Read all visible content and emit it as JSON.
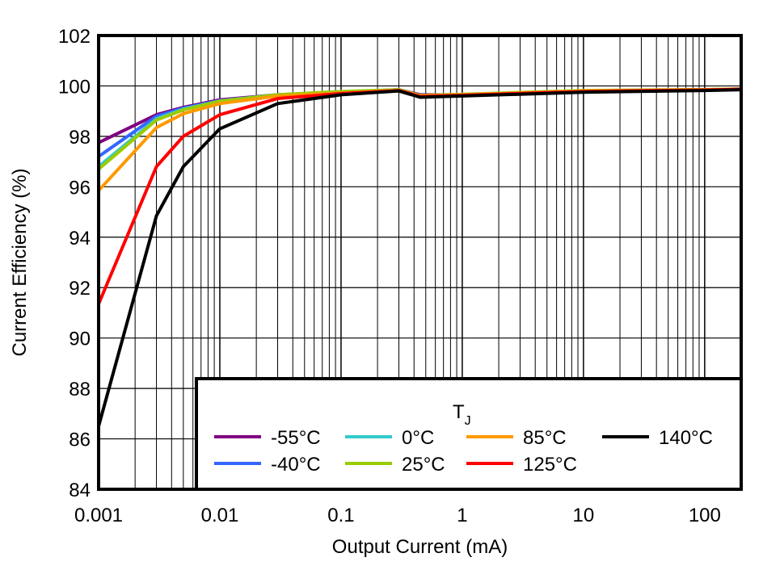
{
  "chart_data": {
    "type": "line",
    "xlabel": "Output Current (mA)",
    "ylabel": "Current Efficiency (%)",
    "xscale": "log",
    "xlim": [
      0.001,
      200
    ],
    "ylim": [
      84,
      102
    ],
    "xticks": [
      "0.001",
      "0.01",
      "0.1",
      "1",
      "10",
      "100"
    ],
    "yticks": [
      "84",
      "86",
      "88",
      "90",
      "92",
      "94",
      "96",
      "98",
      "100",
      "102"
    ],
    "grid": true,
    "legend_title": "T",
    "legend_title_sub": "J",
    "legend_placement": "bottom-right",
    "x": [
      0.001,
      0.003,
      0.005,
      0.01,
      0.03,
      0.1,
      0.3,
      0.45,
      1,
      10,
      100,
      200
    ],
    "series": [
      {
        "name": "-55°C",
        "color": "#800080",
        "values": [
          97.75,
          98.86,
          99.15,
          99.45,
          99.65,
          99.75,
          99.85,
          99.65,
          99.65,
          99.8,
          99.85,
          99.88
        ]
      },
      {
        "name": "-40°C",
        "color": "#3366ff",
        "values": [
          97.2,
          98.8,
          99.12,
          99.42,
          99.65,
          99.75,
          99.85,
          99.62,
          99.65,
          99.8,
          99.85,
          99.88
        ]
      },
      {
        "name": "0°C",
        "color": "#33cccc",
        "values": [
          96.8,
          98.7,
          99.08,
          99.4,
          99.65,
          99.75,
          99.85,
          99.6,
          99.65,
          99.8,
          99.85,
          99.88
        ]
      },
      {
        "name": "25°C",
        "color": "#99cc00",
        "values": [
          96.7,
          98.65,
          99.05,
          99.4,
          99.65,
          99.78,
          99.85,
          99.62,
          99.67,
          99.82,
          99.86,
          99.88
        ]
      },
      {
        "name": "85°C",
        "color": "#ff9900",
        "values": [
          95.85,
          98.35,
          98.9,
          99.3,
          99.6,
          99.72,
          99.82,
          99.6,
          99.65,
          99.8,
          99.85,
          99.88
        ]
      },
      {
        "name": "125°C",
        "color": "#ff0000",
        "values": [
          91.35,
          96.8,
          98.0,
          98.86,
          99.5,
          99.7,
          99.82,
          99.58,
          99.63,
          99.78,
          99.84,
          99.87
        ]
      },
      {
        "name": "140°C",
        "color": "#000000",
        "values": [
          86.5,
          94.85,
          96.8,
          98.3,
          99.3,
          99.65,
          99.8,
          99.55,
          99.6,
          99.75,
          99.82,
          99.85
        ]
      }
    ]
  }
}
